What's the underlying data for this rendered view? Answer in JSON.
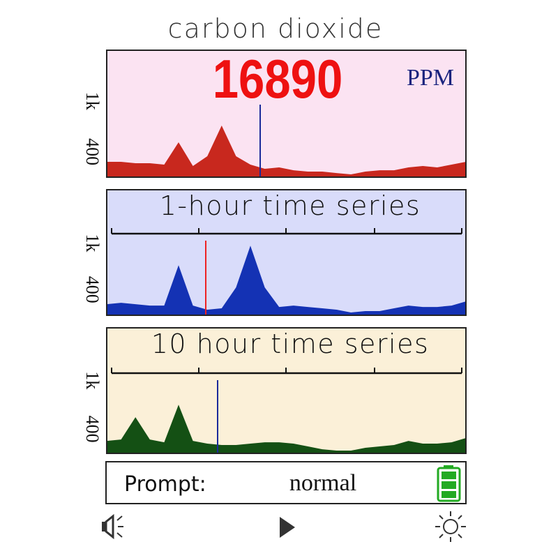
{
  "header": {
    "title": "carbon dioxide"
  },
  "reading": {
    "value": 16890,
    "unit": "PPM"
  },
  "panels": [
    {
      "ticks": [
        {
          "value": 1000,
          "label": "1k"
        },
        400
      ],
      "ylim": [
        100,
        1600
      ],
      "color": "#c8281e",
      "background": "#fbe3f2",
      "values": [
        281,
        281,
        265,
        265,
        248,
        512,
        232,
        347,
        710,
        347,
        248,
        199,
        215,
        182,
        166,
        166,
        149,
        133,
        166,
        182,
        182,
        215,
        232,
        215,
        248,
        281
      ]
    },
    {
      "title": "1-hour time series",
      "ticks": [
        {
          "value": 1000,
          "label": "1k"
        },
        400
      ],
      "ylim": [
        70,
        1075
      ],
      "color": "#1432b4",
      "background": "#d9dcfa",
      "values": [
        213,
        231,
        213,
        195,
        195,
        714,
        195,
        142,
        160,
        428,
        965,
        428,
        177,
        195,
        177,
        160,
        142,
        106,
        124,
        124,
        160,
        195,
        177,
        177,
        195,
        249
      ]
    },
    {
      "title": "10 hour time series",
      "ticks": [
        {
          "value": 1000,
          "label": "1k"
        },
        400
      ],
      "ylim": [
        100,
        1045
      ],
      "color": "#145014",
      "background": "#fbf0d8",
      "values": [
        254,
        271,
        546,
        271,
        237,
        700,
        254,
        220,
        203,
        203,
        220,
        237,
        237,
        220,
        186,
        151,
        134,
        134,
        169,
        186,
        203,
        254,
        220,
        220,
        237,
        289
      ]
    }
  ],
  "status": {
    "label": "Prompt:",
    "value": "normal"
  }
}
